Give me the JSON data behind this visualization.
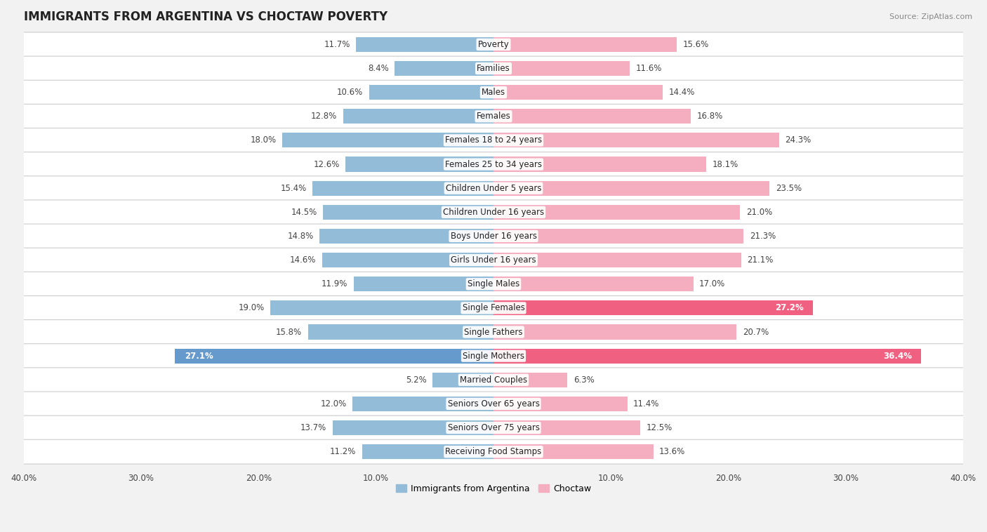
{
  "title": "IMMIGRANTS FROM ARGENTINA VS CHOCTAW POVERTY",
  "source": "Source: ZipAtlas.com",
  "categories": [
    "Poverty",
    "Families",
    "Males",
    "Females",
    "Females 18 to 24 years",
    "Females 25 to 34 years",
    "Children Under 5 years",
    "Children Under 16 years",
    "Boys Under 16 years",
    "Girls Under 16 years",
    "Single Males",
    "Single Females",
    "Single Fathers",
    "Single Mothers",
    "Married Couples",
    "Seniors Over 65 years",
    "Seniors Over 75 years",
    "Receiving Food Stamps"
  ],
  "argentina_values": [
    11.7,
    8.4,
    10.6,
    12.8,
    18.0,
    12.6,
    15.4,
    14.5,
    14.8,
    14.6,
    11.9,
    19.0,
    15.8,
    27.1,
    5.2,
    12.0,
    13.7,
    11.2
  ],
  "choctaw_values": [
    15.6,
    11.6,
    14.4,
    16.8,
    24.3,
    18.1,
    23.5,
    21.0,
    21.3,
    21.1,
    17.0,
    27.2,
    20.7,
    36.4,
    6.3,
    11.4,
    12.5,
    13.6
  ],
  "argentina_color": "#92bcd8",
  "choctaw_color": "#f5aec0",
  "argentina_highlight_color": "#6699cc",
  "choctaw_highlight_color": "#f06080",
  "axis_max": 40.0,
  "bar_height": 0.62,
  "bg_color": "#f2f2f2",
  "title_fontsize": 12,
  "value_fontsize": 8.5,
  "label_fontsize": 8.5,
  "highlight_threshold": 25.0
}
